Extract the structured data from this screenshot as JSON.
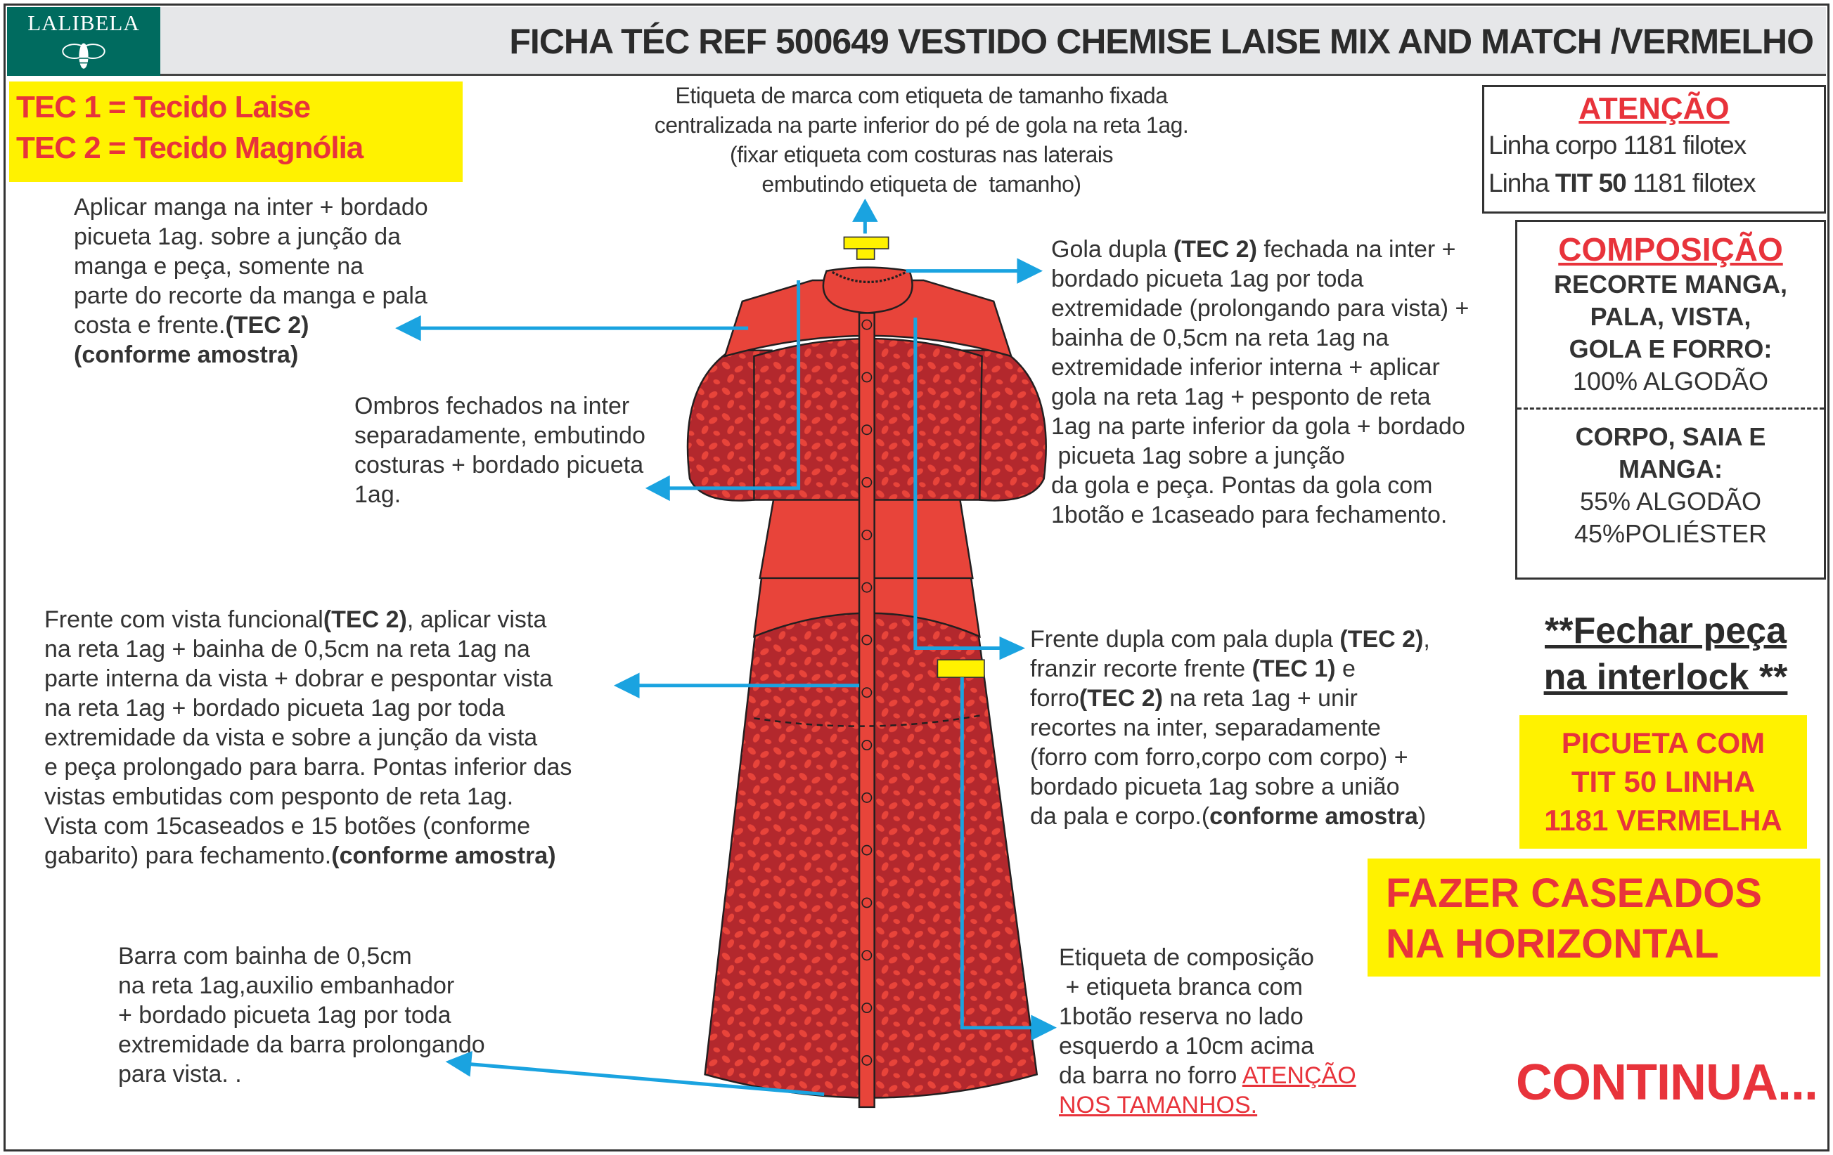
{
  "header": {
    "logo_text": "LALIBELA",
    "title": "FICHA TÉC REF 500649 VESTIDO CHEMISE LAISE MIX AND MATCH /VERMELHO"
  },
  "fabrics": [
    "TEC 1 = Tecido Laise",
    "TEC 2 = Tecido Magnólia"
  ],
  "notes": {
    "top": [
      [
        "Etiqueta de marca com etiqueta de tamanho fixada"
      ],
      [
        "centralizada na parte inferior do pé de gola na reta 1ag."
      ],
      [
        "(fixar etiqueta com costuras nas laterais"
      ],
      [
        "embutindo etiqueta de  tamanho)"
      ]
    ],
    "manga": [
      [
        "Aplicar manga na inter + bordado"
      ],
      [
        "picueta 1ag. sobre a junção da"
      ],
      [
        "manga e peça, somente na"
      ],
      [
        "parte do recorte da manga e pala"
      ],
      [
        "costa e frente.",
        {
          "b": "(TEC 2)"
        }
      ],
      [
        {
          "b": "(conforme amostra)"
        }
      ]
    ],
    "ombros": [
      [
        "Ombros fechados na inter"
      ],
      [
        "separadamente, embutindo"
      ],
      [
        "costuras + bordado picueta"
      ],
      [
        "1ag."
      ]
    ],
    "vista": [
      [
        "Frente com vista funcional",
        {
          "b": "(TEC 2)"
        },
        ", aplicar vista"
      ],
      [
        "na reta 1ag + bainha de 0,5cm na reta 1ag na"
      ],
      [
        "parte interna da vista + dobrar e pespontar vista"
      ],
      [
        "na reta 1ag + bordado picueta 1ag por toda"
      ],
      [
        "extremidade da vista e sobre a junção da vista"
      ],
      [
        "e peça prolongado para barra. Pontas inferior das"
      ],
      [
        "vistas embutidas com pesponto de reta 1ag."
      ],
      [
        "Vista com 15caseados e 15 botões (conforme"
      ],
      [
        "gabarito) para fechamento.",
        {
          "b": "(conforme amostra)"
        }
      ]
    ],
    "barra": [
      [
        "Barra com bainha de 0,5cm"
      ],
      [
        "na reta 1ag,auxilio embanhador"
      ],
      [
        "+ bordado picueta 1ag por toda"
      ],
      [
        "extremidade da barra prolongando"
      ],
      [
        "para vista. ."
      ]
    ],
    "gola": [
      [
        "Gola dupla ",
        {
          "b": "(TEC 2)"
        },
        " fechada na inter +"
      ],
      [
        "bordado picueta 1ag por toda"
      ],
      [
        "extremidade (prolongando para vista) +"
      ],
      [
        "bainha de 0,5cm na reta 1ag na"
      ],
      [
        "extremidade inferior interna + aplicar"
      ],
      [
        "gola na reta 1ag + pesponto de reta"
      ],
      [
        "1ag na parte inferior da gola + bordado"
      ],
      [
        " picueta 1ag sobre a junção"
      ],
      [
        "da gola e peça. Pontas da gola com"
      ],
      [
        "1botão e 1caseado para fechamento."
      ]
    ],
    "frente": [
      [
        "Frente dupla com pala dupla ",
        {
          "b": "(TEC 2)"
        },
        ","
      ],
      [
        "franzir recorte frente ",
        {
          "b": "(TEC 1)"
        },
        " e"
      ],
      [
        "forro",
        {
          "b": "(TEC 2)"
        },
        " na reta 1ag + unir"
      ],
      [
        "recortes na inter, separadamente"
      ],
      [
        "(forro com forro,corpo com corpo) +"
      ],
      [
        "bordado picueta 1ag sobre a união"
      ],
      [
        "da pala e corpo.(",
        {
          "b": "conforme amostra"
        },
        ")"
      ]
    ],
    "etiqueta": [
      [
        "Etiqueta de composição"
      ],
      [
        " + etiqueta branca com"
      ],
      [
        "1botão reserva no lado"
      ],
      [
        "esquerdo a 10cm acima"
      ],
      [
        "da barra no forro ",
        {
          "r": "ATENÇÃO"
        }
      ],
      [
        {
          "r": "NOS TAMANHOS."
        }
      ]
    ]
  },
  "atencao": {
    "heading": "ATENÇÃO",
    "line1": "Linha corpo 1181 filotex",
    "line2_pre": "Linha ",
    "line2_bold": "TIT 50",
    "line2_post": " 1181 filotex"
  },
  "composicao": {
    "heading": "COMPOSIÇÃO",
    "part1_label": [
      "RECORTE MANGA,",
      "PALA, VISTA,",
      "GOLA E FORRO:"
    ],
    "part1_value": [
      "100% ALGODÃO"
    ],
    "part2_label": [
      "CORPO, SAIA E",
      "MANGA:"
    ],
    "part2_value": [
      "55% ALGODÃO",
      "45%POLIÉSTER"
    ]
  },
  "warnings": {
    "fechar": [
      "**Fechar peça",
      "na interlock **"
    ],
    "picueta": [
      "PICUETA COM",
      "TIT 50 LINHA",
      "1181 VERMELHA"
    ],
    "caseados": [
      "FAZER CASEADOS",
      "NA HORIZONTAL"
    ],
    "continua": "CONTINUA..."
  },
  "colors": {
    "accent_red": "#e8333b",
    "highlight_yellow": "#fff200",
    "arrow_blue": "#1aa3e0",
    "logo_teal": "#006b5f",
    "dress_red": "#e8443a",
    "print_dark": "#b3282d"
  }
}
